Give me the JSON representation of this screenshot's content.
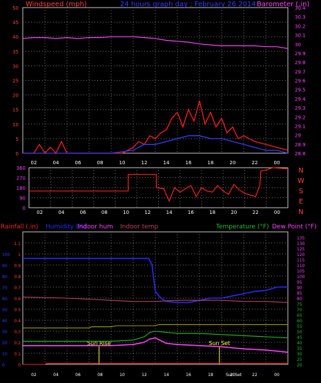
{
  "colors": {
    "wind": "#ff2020",
    "gust_avg": "#3a3aff",
    "barometer": "#ff40ff",
    "direction": "#ff2020",
    "rain": "#ff2020",
    "humidity": "#2a2aff",
    "indoor_hum": "#ff40ff",
    "indoor_temp": "#c04060",
    "temperature": "#22c022",
    "dew_point": "#ff40ff",
    "series_olive": "#a0a000",
    "sun": "#ffff40",
    "grid": "#7a7a7a",
    "axis_label_left": "#ff4040",
    "axis_label_right": "#ff40ff",
    "title": "#3a3aff"
  },
  "chart_data": [
    {
      "type": "line",
      "title": "24 hours graph day : February 26 2014",
      "ylabel_left": "Windspeed (mph)",
      "ylabel_right": "Barometer (.in)",
      "ylim": [
        0,
        50
      ],
      "y2lim": [
        28.8,
        30.4
      ],
      "xlim": [
        0,
        24
      ],
      "x_ticks": [
        "02",
        "04",
        "06",
        "08",
        "10",
        "12",
        "14",
        "16",
        "18",
        "20",
        "22",
        "00"
      ],
      "y_ticks": [
        "0",
        "5",
        "10",
        "15",
        "20",
        "25",
        "30",
        "35",
        "40",
        "45",
        "50"
      ],
      "y2_ticks": [
        "28.8",
        "28.9",
        "29",
        "29.1",
        "29.2",
        "29.3",
        "29.4",
        "29.5",
        "29.6",
        "29.7",
        "29.8",
        "29.9",
        "30",
        "30.1",
        "30.2",
        "30.3",
        "30.4"
      ],
      "grid": true,
      "series": [
        {
          "key": "barometer",
          "axis": "right",
          "x": [
            0,
            1,
            2,
            3,
            4,
            5,
            6,
            7,
            8,
            9,
            10,
            11,
            12,
            13,
            14,
            15,
            16,
            17,
            18,
            19,
            20,
            21,
            22,
            23,
            24
          ],
          "values": [
            30.06,
            30.07,
            30.07,
            30.06,
            30.07,
            30.06,
            30.07,
            30.07,
            30.08,
            30.08,
            30.08,
            30.07,
            30.06,
            30.04,
            30.03,
            30.02,
            30.0,
            29.99,
            29.98,
            29.98,
            29.98,
            29.98,
            29.97,
            29.97,
            29.95
          ]
        },
        {
          "key": "wind",
          "axis": "left",
          "x": [
            0,
            1,
            1.5,
            2,
            2.5,
            3,
            3.5,
            4,
            4.5,
            5,
            6,
            7,
            8,
            9,
            10,
            10.5,
            11,
            11.5,
            12,
            12.5,
            13,
            13.5,
            14,
            14.5,
            15,
            15.5,
            16,
            16.5,
            17,
            17.5,
            18,
            18.5,
            19,
            19.5,
            20,
            21,
            22,
            23,
            24
          ],
          "values": [
            0,
            0,
            3,
            0,
            2,
            0,
            4,
            0,
            0,
            0,
            0,
            0,
            0,
            0,
            2,
            4,
            3,
            6,
            5,
            7,
            8,
            12,
            14,
            9,
            15,
            11,
            18,
            10,
            14,
            9,
            12,
            7,
            9,
            5,
            6,
            4,
            3,
            2,
            1
          ]
        },
        {
          "key": "gust_avg",
          "axis": "left",
          "x": [
            0,
            8,
            10,
            11,
            12,
            13,
            14,
            15,
            16,
            17,
            18,
            19,
            20,
            21,
            22,
            23,
            24
          ],
          "values": [
            0,
            0,
            1,
            3,
            3,
            4,
            5,
            6,
            6,
            5,
            5,
            4,
            3,
            2,
            1,
            1,
            0
          ]
        }
      ]
    },
    {
      "type": "line",
      "ylabel_right_letters": [
        "N",
        "W",
        "S",
        "E",
        "N"
      ],
      "ylim": [
        0,
        360
      ],
      "xlim": [
        0,
        24
      ],
      "x_ticks": [
        "02",
        "04",
        "06",
        "08",
        "10",
        "12",
        "14",
        "16",
        "18",
        "20",
        "22",
        "00"
      ],
      "y_ticks": [
        "0",
        "90",
        "180",
        "270",
        "360"
      ],
      "grid": true,
      "series": [
        {
          "key": "direction",
          "x": [
            0,
            9.2,
            9.2,
            11.8,
            11.8,
            12.5,
            13,
            13.5,
            14,
            14.5,
            15,
            15.5,
            16,
            16.5,
            17,
            17.5,
            18,
            18.5,
            19,
            19.5,
            20,
            21,
            21.4,
            21.5,
            22,
            22.6,
            24
          ],
          "values": [
            150,
            150,
            300,
            300,
            180,
            170,
            60,
            180,
            140,
            170,
            200,
            100,
            180,
            150,
            140,
            200,
            150,
            120,
            210,
            160,
            130,
            100,
            200,
            330,
            340,
            360,
            350
          ]
        }
      ]
    },
    {
      "type": "line",
      "ylabel_left_items": [
        {
          "text": "Rainfall (.in)",
          "color_key": "rain"
        },
        {
          "text": "Humidity (%)",
          "color_key": "humidity"
        },
        {
          "text": "Indoor hum",
          "color_key": "indoor_hum"
        },
        {
          "text": "Indoor temp",
          "color_key": "indoor_temp"
        }
      ],
      "ylabel_right_items": [
        {
          "text": "Temperature (°F)",
          "color_key": "temperature"
        },
        {
          "text": "Dew Point (°F)",
          "color_key": "dew_point"
        }
      ],
      "ylim": [
        0,
        1.2
      ],
      "y2lim": [
        20,
        140
      ],
      "xlim": [
        0,
        24
      ],
      "x_ticks": [
        "02",
        "04",
        "06",
        "08",
        "10",
        "12",
        "14",
        "16",
        "18",
        "Sun Set",
        "20",
        "22",
        "00"
      ],
      "y_ticks_humidity": [
        "0",
        "10",
        "20",
        "30",
        "40",
        "50",
        "60",
        "70",
        "80",
        "90",
        "100"
      ],
      "y_ticks_rain": [
        "0",
        "0.1",
        "0.2",
        "0.3",
        "0.4",
        "0.5",
        "0.6",
        "0.7",
        "0.8",
        "0.9",
        "1",
        "1.1"
      ],
      "y2_ticks": [
        "20",
        "25",
        "30",
        "35",
        "40",
        "45",
        "50",
        "55",
        "60",
        "65",
        "70",
        "75",
        "80",
        "85",
        "90",
        "95",
        "100",
        "105",
        "110",
        "115",
        "120",
        "125",
        "130",
        "135"
      ],
      "annotations": [
        {
          "text": "Sun Rise",
          "x": 6.9
        },
        {
          "text": "Sun Set",
          "x": 17.8
        }
      ],
      "grid": true,
      "series": [
        {
          "key": "humidity",
          "axis": "humidity",
          "x": [
            0,
            4,
            8,
            11.4,
            11.7,
            12,
            12.5,
            13,
            14,
            15,
            16,
            17,
            18,
            19,
            20,
            21,
            22,
            23,
            24
          ],
          "values": [
            96,
            96,
            96,
            96,
            90,
            66,
            60,
            57,
            56,
            56,
            58,
            60,
            60,
            62,
            64,
            66,
            67,
            70,
            70
          ]
        },
        {
          "key": "indoor_temp",
          "axis": "temp",
          "x": [
            0,
            4,
            8,
            10,
            12,
            14,
            16,
            18,
            20,
            22,
            24
          ],
          "values": [
            81,
            80,
            78,
            77,
            77,
            78,
            78,
            78,
            77,
            77,
            76
          ]
        },
        {
          "key": "series_olive",
          "axis": "temp",
          "x": [
            0,
            6,
            6.2,
            8,
            8.5,
            10,
            12,
            12.3,
            14,
            18,
            24
          ],
          "values": [
            53,
            53,
            54,
            54,
            55,
            55,
            55,
            56,
            56,
            56,
            56
          ]
        },
        {
          "key": "temperature",
          "axis": "temp",
          "x": [
            0,
            4,
            8,
            10,
            11,
            11.5,
            12,
            13,
            14,
            16,
            18,
            20,
            22,
            24
          ],
          "values": [
            41,
            41,
            41,
            42,
            45,
            49,
            50,
            49,
            48,
            48,
            47,
            46,
            45,
            44
          ]
        },
        {
          "key": "dew_point",
          "axis": "temp",
          "x": [
            0,
            4,
            8,
            10,
            11,
            11.5,
            12,
            13,
            14,
            16,
            18,
            20,
            22,
            24
          ],
          "values": [
            37,
            37,
            37,
            38,
            40,
            43,
            44,
            39,
            38,
            37,
            36,
            34,
            33,
            31
          ]
        },
        {
          "key": "rain",
          "axis": "rain",
          "x": [
            0,
            2,
            2.2,
            24
          ],
          "values": [
            0,
            0,
            0.01,
            0.01
          ]
        }
      ]
    }
  ]
}
